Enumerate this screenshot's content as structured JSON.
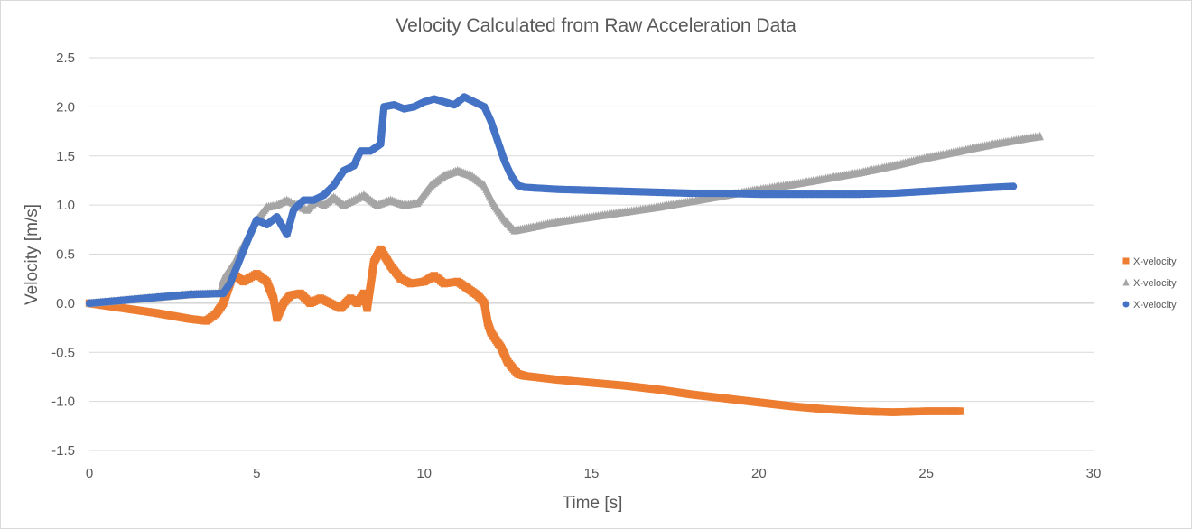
{
  "chart_data": {
    "type": "scatter",
    "title": "Velocity Calculated from Raw Acceleration Data",
    "xlabel": "Time [s]",
    "ylabel": "Velocity  [m/s]",
    "xlim": [
      0,
      30
    ],
    "ylim": [
      -1.5,
      2.5
    ],
    "x_ticks": [
      0,
      5,
      10,
      15,
      20,
      25,
      30
    ],
    "y_ticks": [
      -1.5,
      -1.0,
      -0.5,
      0.0,
      0.5,
      1.0,
      1.5,
      2.0,
      2.5
    ],
    "y_tick_labels": [
      "-1.5",
      "-1.0",
      "-0.5",
      "0.0",
      "0.5",
      "1.0",
      "1.5",
      "2.0",
      "2.5"
    ],
    "grid": true,
    "legend_position": "right",
    "series": [
      {
        "name": "X-velocity",
        "color": "#ed7d31",
        "marker": "square",
        "points": [
          [
            0,
            0
          ],
          [
            1,
            -0.05
          ],
          [
            2,
            -0.1
          ],
          [
            3,
            -0.16
          ],
          [
            3.5,
            -0.18
          ],
          [
            3.8,
            -0.1
          ],
          [
            4,
            0.0
          ],
          [
            4.3,
            0.3
          ],
          [
            4.6,
            0.22
          ],
          [
            5,
            0.3
          ],
          [
            5.3,
            0.22
          ],
          [
            5.5,
            0.05
          ],
          [
            5.6,
            -0.15
          ],
          [
            5.8,
            0.0
          ],
          [
            6,
            0.08
          ],
          [
            6.3,
            0.1
          ],
          [
            6.6,
            0.0
          ],
          [
            6.9,
            0.05
          ],
          [
            7.2,
            0.0
          ],
          [
            7.5,
            -0.05
          ],
          [
            7.8,
            0.05
          ],
          [
            8.0,
            0.0
          ],
          [
            8.2,
            0.1
          ],
          [
            8.3,
            -0.05
          ],
          [
            8.5,
            0.42
          ],
          [
            8.7,
            0.55
          ],
          [
            9.0,
            0.38
          ],
          [
            9.3,
            0.25
          ],
          [
            9.6,
            0.2
          ],
          [
            10,
            0.22
          ],
          [
            10.3,
            0.28
          ],
          [
            10.6,
            0.2
          ],
          [
            11,
            0.22
          ],
          [
            11.3,
            0.15
          ],
          [
            11.6,
            0.08
          ],
          [
            11.8,
            0.0
          ],
          [
            11.9,
            -0.2
          ],
          [
            12.0,
            -0.3
          ],
          [
            12.3,
            -0.45
          ],
          [
            12.5,
            -0.6
          ],
          [
            12.8,
            -0.72
          ],
          [
            13,
            -0.74
          ],
          [
            14,
            -0.78
          ],
          [
            15,
            -0.81
          ],
          [
            16,
            -0.84
          ],
          [
            17,
            -0.88
          ],
          [
            18,
            -0.93
          ],
          [
            19,
            -0.97
          ],
          [
            20,
            -1.01
          ],
          [
            21,
            -1.05
          ],
          [
            22,
            -1.08
          ],
          [
            23,
            -1.1
          ],
          [
            24,
            -1.11
          ],
          [
            25,
            -1.1
          ],
          [
            26,
            -1.1
          ]
        ]
      },
      {
        "name": "X-velocity",
        "color": "#a5a5a5",
        "marker": "triangle",
        "points": [
          [
            0,
            0
          ],
          [
            1,
            0.03
          ],
          [
            2,
            0.06
          ],
          [
            3,
            0.09
          ],
          [
            3.9,
            0.1
          ],
          [
            4.0,
            0.25
          ],
          [
            4.3,
            0.4
          ],
          [
            4.6,
            0.6
          ],
          [
            5,
            0.85
          ],
          [
            5.3,
            0.98
          ],
          [
            5.6,
            1.0
          ],
          [
            5.9,
            1.05
          ],
          [
            6.2,
            1.0
          ],
          [
            6.5,
            0.95
          ],
          [
            6.8,
            1.05
          ],
          [
            7.0,
            1.0
          ],
          [
            7.3,
            1.08
          ],
          [
            7.6,
            1.0
          ],
          [
            7.9,
            1.05
          ],
          [
            8.2,
            1.1
          ],
          [
            8.6,
            1.0
          ],
          [
            9.0,
            1.05
          ],
          [
            9.4,
            1.0
          ],
          [
            9.8,
            1.02
          ],
          [
            10.2,
            1.2
          ],
          [
            10.6,
            1.3
          ],
          [
            11.0,
            1.35
          ],
          [
            11.4,
            1.3
          ],
          [
            11.8,
            1.2
          ],
          [
            12.1,
            1.0
          ],
          [
            12.4,
            0.85
          ],
          [
            12.7,
            0.74
          ],
          [
            13,
            0.76
          ],
          [
            14,
            0.83
          ],
          [
            15,
            0.88
          ],
          [
            16,
            0.93
          ],
          [
            17,
            0.98
          ],
          [
            18,
            1.04
          ],
          [
            19,
            1.1
          ],
          [
            20,
            1.16
          ],
          [
            21,
            1.21
          ],
          [
            22,
            1.27
          ],
          [
            23,
            1.33
          ],
          [
            24,
            1.4
          ],
          [
            25,
            1.48
          ],
          [
            26,
            1.55
          ],
          [
            27,
            1.62
          ],
          [
            28,
            1.68
          ],
          [
            28.4,
            1.7
          ]
        ]
      },
      {
        "name": "X-velocity",
        "color": "#4472c4",
        "marker": "circle",
        "points": [
          [
            0,
            0
          ],
          [
            1,
            0.03
          ],
          [
            2,
            0.06
          ],
          [
            3,
            0.09
          ],
          [
            4.0,
            0.1
          ],
          [
            4.2,
            0.2
          ],
          [
            4.5,
            0.45
          ],
          [
            4.8,
            0.7
          ],
          [
            5.0,
            0.85
          ],
          [
            5.3,
            0.8
          ],
          [
            5.6,
            0.88
          ],
          [
            5.9,
            0.7
          ],
          [
            6.1,
            0.95
          ],
          [
            6.4,
            1.05
          ],
          [
            6.7,
            1.05
          ],
          [
            7.0,
            1.1
          ],
          [
            7.3,
            1.2
          ],
          [
            7.6,
            1.35
          ],
          [
            7.9,
            1.4
          ],
          [
            8.1,
            1.55
          ],
          [
            8.4,
            1.55
          ],
          [
            8.7,
            1.62
          ],
          [
            8.8,
            2.0
          ],
          [
            9.1,
            2.02
          ],
          [
            9.4,
            1.98
          ],
          [
            9.7,
            2.0
          ],
          [
            10.0,
            2.05
          ],
          [
            10.3,
            2.08
          ],
          [
            10.6,
            2.05
          ],
          [
            10.9,
            2.02
          ],
          [
            11.2,
            2.1
          ],
          [
            11.5,
            2.05
          ],
          [
            11.8,
            2.0
          ],
          [
            12.0,
            1.85
          ],
          [
            12.2,
            1.65
          ],
          [
            12.4,
            1.45
          ],
          [
            12.6,
            1.3
          ],
          [
            12.8,
            1.2
          ],
          [
            13,
            1.18
          ],
          [
            14,
            1.16
          ],
          [
            15,
            1.15
          ],
          [
            16,
            1.14
          ],
          [
            17,
            1.13
          ],
          [
            18,
            1.12
          ],
          [
            19,
            1.12
          ],
          [
            20,
            1.11
          ],
          [
            21,
            1.11
          ],
          [
            22,
            1.11
          ],
          [
            23,
            1.11
          ],
          [
            24,
            1.12
          ],
          [
            25,
            1.14
          ],
          [
            26,
            1.16
          ],
          [
            27,
            1.18
          ],
          [
            27.6,
            1.19
          ]
        ]
      }
    ]
  }
}
